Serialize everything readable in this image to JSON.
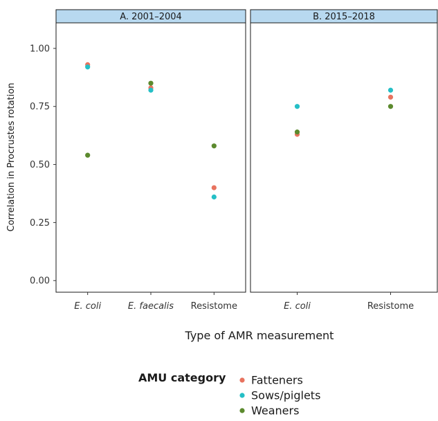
{
  "chart_data": {
    "type": "scatter",
    "title": "",
    "xlabel": "Type of AMR measurement",
    "ylabel": "Correlation in Procrustes rotation",
    "ylim": [
      -0.05,
      1.11
    ],
    "yticks": [
      "0.00",
      "0.25",
      "0.50",
      "0.75",
      "1.00"
    ],
    "ytick_values": [
      0,
      0.25,
      0.5,
      0.75,
      1.0
    ],
    "grid": false,
    "legend": {
      "title": "AMU category",
      "position": "bottom",
      "entries": [
        "Fatteners",
        "Sows/piglets",
        "Weaners"
      ]
    },
    "colors": {
      "Fatteners": "#E8735F",
      "Sows/piglets": "#25BFC6",
      "Weaners": "#5C8A2E"
    },
    "panels": [
      {
        "title": "A. 2001–2004",
        "categories": [
          "E. coli",
          "E. faecalis",
          "Resistome"
        ],
        "italic": [
          true,
          true,
          false
        ],
        "series": [
          {
            "name": "Fatteners",
            "values": [
              0.93,
              0.83,
              0.4
            ]
          },
          {
            "name": "Sows/piglets",
            "values": [
              0.92,
              0.82,
              0.36
            ]
          },
          {
            "name": "Weaners",
            "values": [
              0.54,
              0.85,
              0.58
            ]
          }
        ]
      },
      {
        "title": "B. 2015–2018",
        "categories": [
          "E. coli",
          "Resistome"
        ],
        "italic": [
          true,
          false
        ],
        "series": [
          {
            "name": "Fatteners",
            "values": [
              0.63,
              0.79
            ]
          },
          {
            "name": "Sows/piglets",
            "values": [
              0.75,
              0.82
            ]
          },
          {
            "name": "Weaners",
            "values": [
              0.64,
              0.75
            ]
          }
        ]
      }
    ]
  }
}
